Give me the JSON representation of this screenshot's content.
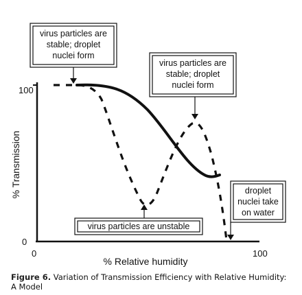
{
  "axes": {
    "y_label": "% Transmission",
    "x_label": "% Relative humidity",
    "y_top_tick": "100",
    "y_bottom_tick": "0",
    "x_left_tick": "0",
    "x_right_tick": "100"
  },
  "annotations": {
    "box1_lines": [
      "virus particles are",
      "stable; droplet",
      "nuclei form"
    ],
    "box2_lines": [
      "virus particles are",
      "stable; droplet",
      "nuclei form"
    ],
    "box3_lines": [
      "virus particles are unstable"
    ],
    "box4_lines": [
      "droplet",
      "nuclei take",
      "on water"
    ]
  },
  "caption": {
    "label": "Figure 6.",
    "text": " Variation of Transmission Efficiency with Relative Humidity: A Model"
  },
  "colors": {
    "ink": "#111111",
    "caption_label": "#222222"
  }
}
